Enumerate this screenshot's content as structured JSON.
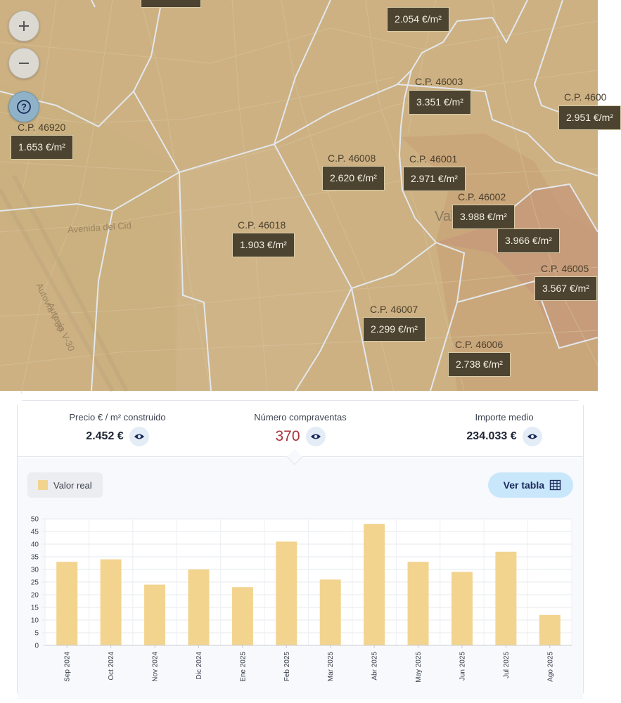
{
  "map": {
    "zoom_in_label": "+",
    "zoom_out_label": "−",
    "help_icon": "question-icon",
    "districts": [
      {
        "cp": "",
        "price": "2.054 €/m²"
      },
      {
        "cp": "C.P. 46003",
        "price": "3.351 €/m²"
      },
      {
        "cp": "C.P. 4600",
        "price": "2.951 €/m²"
      },
      {
        "cp": "C.P. 46920",
        "price": "1.653 €/m²"
      },
      {
        "cp": "C.P. 46008",
        "price": "2.620 €/m²"
      },
      {
        "cp": "C.P. 46001",
        "price": "2.971 €/m²"
      },
      {
        "cp": "C.P. 46002",
        "price": "3.988 €/m²"
      },
      {
        "cp": "",
        "price": "3.966 €/m²"
      },
      {
        "cp": "C.P. 46018",
        "price": "1.903 €/m²"
      },
      {
        "cp": "C.P. 46005",
        "price": "3.567 €/m²"
      },
      {
        "cp": "C.P. 46007",
        "price": "2.299 €/m²"
      },
      {
        "cp": "C.P. 46006",
        "price": "2.738 €/m²"
      }
    ],
    "streets": [
      "Avenida del Cid",
      "Autovía V-30",
      "Autovía V-30",
      "Val"
    ]
  },
  "stats": {
    "price": {
      "title": "Precio € / m² construido",
      "value": "2.452 €"
    },
    "sales": {
      "title": "Número compraventas",
      "value": "370"
    },
    "average": {
      "title": "Importe medio",
      "value": "234.033 €"
    }
  },
  "legend": {
    "label": "Valor real",
    "color": "#f2d48f"
  },
  "table_button": {
    "label": "Ver tabla",
    "icon": "table-grid-icon"
  },
  "colors": {
    "accent": "#a8343c",
    "bar": "#f2d48f",
    "button_bg": "#c9e7fb"
  },
  "chart_data": {
    "type": "bar",
    "categories": [
      "Sep 2024",
      "Oct 2024",
      "Nov 2024",
      "Dic 2024",
      "Ene 2025",
      "Feb 2025",
      "Mar 2025",
      "Abr 2025",
      "May 2025",
      "Jun 2025",
      "Jul 2025",
      "Ago 2025"
    ],
    "series": [
      {
        "name": "Valor real",
        "values": [
          33,
          34,
          24,
          30,
          23,
          41,
          26,
          48,
          33,
          29,
          37,
          12
        ]
      }
    ],
    "yticks": [
      "0",
      "5",
      "10",
      "15",
      "20",
      "25",
      "30",
      "35",
      "40",
      "45",
      "50"
    ],
    "ylim": [
      0,
      50
    ],
    "grid": true,
    "legend": "top-left"
  }
}
